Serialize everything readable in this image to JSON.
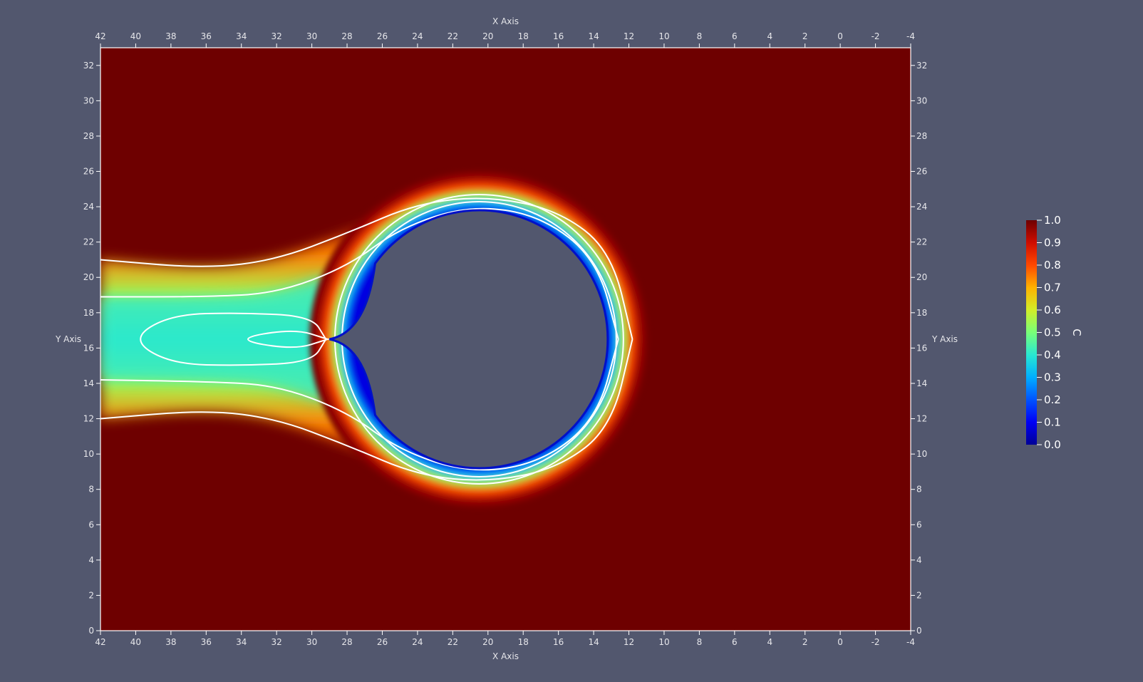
{
  "chart_data": {
    "type": "heatmap",
    "field_name": "C",
    "x_axis": {
      "label": "X Axis",
      "range": [
        42,
        -4
      ],
      "reversed": true,
      "ticks": [
        42,
        40,
        38,
        36,
        34,
        32,
        30,
        28,
        26,
        24,
        22,
        20,
        18,
        16,
        14,
        12,
        10,
        8,
        6,
        4,
        2,
        0,
        -2,
        -4
      ]
    },
    "y_axis": {
      "label": "Y Axis",
      "range": [
        0,
        33
      ],
      "ticks": [
        0,
        2,
        4,
        6,
        8,
        10,
        12,
        14,
        16,
        18,
        20,
        22,
        24,
        26,
        28,
        30,
        32
      ]
    },
    "colorbar": {
      "title": "C",
      "range": [
        0.0,
        1.0
      ],
      "ticks": [
        "0.0",
        "0.1",
        "0.2",
        "0.3",
        "0.4",
        "0.5",
        "0.6",
        "0.7",
        "0.8",
        "0.9",
        "1.0"
      ],
      "colormap": "jet"
    },
    "obstacle": {
      "shape": "circle",
      "center": [
        20.5,
        16.5
      ],
      "radius": 7.3,
      "tail_tip": [
        29,
        16.5
      ]
    },
    "contour_lines": [
      {
        "name": "outer-upper",
        "points": [
          [
            42,
            21
          ],
          [
            36,
            20.5
          ],
          [
            32,
            21
          ],
          [
            28,
            22.5
          ],
          [
            24,
            24.2
          ],
          [
            20,
            24.6
          ],
          [
            16,
            23.8
          ],
          [
            13,
            21.5
          ],
          [
            11.8,
            16.5
          ]
        ]
      },
      {
        "name": "outer-lower",
        "points": [
          [
            42,
            12
          ],
          [
            36,
            12.5
          ],
          [
            32,
            12
          ],
          [
            28,
            10.5
          ],
          [
            24,
            8.8
          ],
          [
            20,
            8.4
          ],
          [
            16,
            9.2
          ],
          [
            13,
            11.5
          ],
          [
            11.8,
            16.5
          ]
        ]
      },
      {
        "name": "mid-upper",
        "points": [
          [
            42,
            18.9
          ],
          [
            36,
            18.9
          ],
          [
            32,
            19.1
          ],
          [
            28,
            20.6
          ],
          [
            25,
            22.8
          ],
          [
            21,
            24.1
          ],
          [
            17,
            23.5
          ],
          [
            13.8,
            21
          ],
          [
            12.6,
            16.5
          ]
        ]
      },
      {
        "name": "mid-lower",
        "points": [
          [
            42,
            14.2
          ],
          [
            36,
            14.1
          ],
          [
            32,
            13.9
          ],
          [
            28,
            12.4
          ],
          [
            25,
            10.2
          ],
          [
            21,
            8.9
          ],
          [
            17,
            9.5
          ],
          [
            13.8,
            12
          ],
          [
            12.6,
            16.5
          ]
        ]
      },
      {
        "name": "inner-loop",
        "points": [
          [
            29.2,
            16.5
          ],
          [
            30,
            17.8
          ],
          [
            34,
            18.0
          ],
          [
            38,
            17.9
          ],
          [
            40.3,
            16.5
          ],
          [
            38,
            15.1
          ],
          [
            34,
            15.0
          ],
          [
            30,
            15.2
          ],
          [
            29.2,
            16.5
          ]
        ]
      },
      {
        "name": "innermost-loop",
        "points": [
          [
            29.1,
            16.5
          ],
          [
            31,
            17.1
          ],
          [
            34.5,
            16.5
          ],
          [
            31,
            15.9
          ],
          [
            29.1,
            16.5
          ]
        ]
      }
    ]
  }
}
